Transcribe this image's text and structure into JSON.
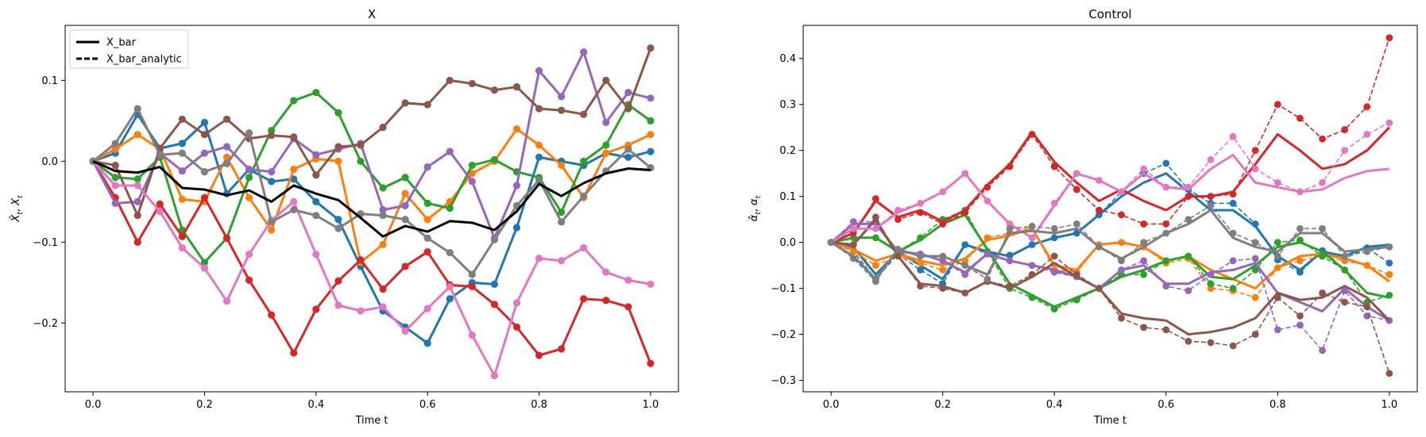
{
  "colors": {
    "blue": "#1f77b4",
    "orange": "#ff7f0e",
    "green": "#2ca02c",
    "red": "#d62728",
    "purple": "#9467bd",
    "brown": "#8c564b",
    "pink": "#e377c2",
    "gray": "#7f7f7f",
    "black": "#000000"
  },
  "chart_data": [
    {
      "type": "line",
      "title": "X",
      "xlabel": "Time t",
      "ylabel": "X̂_t, X_t",
      "xlim": [
        -0.05,
        1.05
      ],
      "ylim": [
        -0.285,
        0.168
      ],
      "xticks": [
        0.0,
        0.2,
        0.4,
        0.6,
        0.8,
        1.0
      ],
      "xtick_labels": [
        "0.0",
        "0.2",
        "0.4",
        "0.6",
        "0.8",
        "1.0"
      ],
      "yticks": [
        -0.2,
        -0.1,
        0.0,
        0.1
      ],
      "ytick_labels": [
        "−0.2",
        "−0.1",
        "0.0",
        "0.1"
      ],
      "grid": false,
      "legend": {
        "placement": "top-left",
        "entries": [
          {
            "label": "X_bar",
            "style": "solid"
          },
          {
            "label": "X_bar_analytic",
            "style": "dashed"
          }
        ]
      },
      "x": [
        0,
        0.04,
        0.08,
        0.12,
        0.16,
        0.2,
        0.24,
        0.28,
        0.32,
        0.36,
        0.4,
        0.44,
        0.48,
        0.52,
        0.56,
        0.6,
        0.64,
        0.68,
        0.72,
        0.76,
        0.8,
        0.84,
        0.88,
        0.92,
        0.96,
        1.0
      ],
      "series": [
        {
          "color": "blue",
          "values": [
            0,
            0.01,
            0.058,
            0.016,
            0.022,
            0.048,
            -0.04,
            -0.01,
            -0.025,
            -0.022,
            -0.05,
            -0.072,
            -0.13,
            -0.185,
            -0.205,
            -0.225,
            -0.17,
            -0.15,
            -0.152,
            -0.082,
            0.005,
            0.0,
            -0.005,
            0.01,
            0.005,
            0.012
          ]
        },
        {
          "color": "orange",
          "values": [
            0,
            0.015,
            0.033,
            0.015,
            -0.047,
            -0.05,
            0.005,
            -0.045,
            -0.085,
            -0.01,
            0.003,
            0.0,
            -0.125,
            -0.103,
            -0.04,
            -0.072,
            -0.05,
            -0.015,
            0.0,
            0.04,
            0.02,
            -0.005,
            -0.045,
            0.01,
            0.02,
            0.033
          ]
        },
        {
          "color": "green",
          "values": [
            0,
            -0.02,
            -0.022,
            0.005,
            -0.085,
            -0.125,
            -0.095,
            -0.02,
            0.038,
            0.075,
            0.085,
            0.06,
            -0.0,
            -0.033,
            -0.02,
            -0.052,
            -0.058,
            -0.005,
            0.002,
            -0.013,
            -0.02,
            -0.063,
            0.0,
            0.02,
            0.07,
            0.05
          ]
        },
        {
          "color": "red",
          "values": [
            0,
            -0.045,
            -0.1,
            -0.053,
            -0.093,
            -0.045,
            -0.095,
            -0.147,
            -0.19,
            -0.237,
            -0.183,
            -0.148,
            -0.122,
            -0.158,
            -0.13,
            -0.112,
            -0.153,
            -0.155,
            -0.177,
            -0.205,
            -0.24,
            -0.232,
            -0.17,
            -0.172,
            -0.18,
            -0.25
          ]
        },
        {
          "color": "purple",
          "values": [
            0,
            -0.052,
            -0.05,
            0.01,
            -0.012,
            0.01,
            0.018,
            -0.01,
            -0.013,
            0.028,
            0.008,
            0.015,
            0.022,
            -0.06,
            -0.055,
            -0.007,
            0.012,
            -0.025,
            -0.095,
            -0.03,
            0.112,
            0.08,
            0.135,
            0.048,
            0.085,
            0.078
          ]
        },
        {
          "color": "brown",
          "values": [
            0,
            -0.005,
            -0.067,
            0.016,
            0.052,
            0.033,
            0.052,
            0.028,
            0.032,
            0.03,
            -0.017,
            0.018,
            0.02,
            0.042,
            0.072,
            0.07,
            0.1,
            0.096,
            0.088,
            0.092,
            0.065,
            0.063,
            0.058,
            0.1,
            0.065,
            0.14
          ]
        },
        {
          "color": "pink",
          "values": [
            0,
            -0.03,
            -0.03,
            -0.062,
            -0.107,
            -0.132,
            -0.173,
            -0.115,
            -0.073,
            -0.05,
            -0.115,
            -0.178,
            -0.185,
            -0.18,
            -0.21,
            -0.182,
            -0.155,
            -0.215,
            -0.265,
            -0.175,
            -0.12,
            -0.123,
            -0.107,
            -0.137,
            -0.147,
            -0.152
          ]
        },
        {
          "color": "gray",
          "values": [
            0,
            0.022,
            0.065,
            0.008,
            0.01,
            -0.013,
            -0.003,
            0.035,
            -0.075,
            -0.06,
            -0.067,
            -0.083,
            -0.065,
            -0.067,
            -0.072,
            -0.095,
            -0.113,
            -0.14,
            -0.097,
            -0.055,
            -0.023,
            -0.075,
            -0.043,
            -0.012,
            0.015,
            -0.008
          ]
        },
        {
          "color": "black",
          "label": "X_bar",
          "mean": true,
          "values": [
            0,
            -0.012,
            -0.014,
            -0.007,
            -0.033,
            -0.035,
            -0.042,
            -0.036,
            -0.05,
            -0.03,
            -0.04,
            -0.048,
            -0.07,
            -0.093,
            -0.08,
            -0.087,
            -0.074,
            -0.076,
            -0.085,
            -0.062,
            -0.028,
            -0.043,
            -0.027,
            -0.015,
            -0.009,
            -0.011
          ]
        }
      ]
    },
    {
      "type": "line",
      "title": "Control",
      "xlabel": "Time t",
      "ylabel": "α̂_t, α_t",
      "xlim": [
        -0.05,
        1.05
      ],
      "ylim": [
        -0.325,
        0.472
      ],
      "xticks": [
        0.0,
        0.2,
        0.4,
        0.6,
        0.8,
        1.0
      ],
      "xtick_labels": [
        "0.0",
        "0.2",
        "0.4",
        "0.6",
        "0.8",
        "1.0"
      ],
      "yticks": [
        -0.3,
        -0.2,
        -0.1,
        0.0,
        0.1,
        0.2,
        0.3,
        0.4
      ],
      "ytick_labels": [
        "−0.3",
        "−0.2",
        "−0.1",
        "0.0",
        "0.1",
        "0.2",
        "0.3",
        "0.4"
      ],
      "grid": false,
      "x": [
        0,
        0.04,
        0.08,
        0.12,
        0.16,
        0.2,
        0.24,
        0.28,
        0.32,
        0.36,
        0.4,
        0.44,
        0.48,
        0.52,
        0.56,
        0.6,
        0.64,
        0.68,
        0.72,
        0.76,
        0.8,
        0.84,
        0.88,
        0.92,
        0.96,
        1.0
      ],
      "series": [
        {
          "color": "blue",
          "dashed": [
            0,
            -0.02,
            -0.08,
            -0.025,
            -0.06,
            -0.09,
            -0.005,
            -0.025,
            -0.028,
            -0.005,
            0.01,
            0.02,
            0.06,
            0.11,
            0.15,
            0.172,
            0.115,
            0.085,
            0.085,
            0.04,
            -0.038,
            -0.065,
            -0.018,
            -0.035,
            -0.012,
            -0.045
          ],
          "solid": [
            0,
            -0.01,
            -0.07,
            -0.02,
            -0.05,
            -0.08,
            -0.005,
            -0.02,
            -0.03,
            -0.005,
            0.01,
            0.02,
            0.06,
            0.1,
            0.13,
            0.15,
            0.11,
            0.07,
            0.07,
            0.035,
            -0.03,
            -0.06,
            -0.02,
            -0.03,
            -0.01,
            -0.005
          ]
        },
        {
          "color": "orange",
          "dashed": [
            0,
            -0.02,
            -0.05,
            -0.03,
            -0.045,
            -0.06,
            -0.04,
            0.01,
            0.02,
            0.035,
            -0.06,
            -0.065,
            -0.005,
            0.0,
            -0.01,
            -0.045,
            -0.035,
            -0.1,
            -0.105,
            -0.12,
            -0.055,
            -0.04,
            -0.03,
            -0.04,
            -0.05,
            -0.07
          ],
          "solid": [
            0,
            -0.015,
            -0.04,
            -0.025,
            -0.04,
            -0.05,
            -0.035,
            0.005,
            0.015,
            0.03,
            -0.05,
            -0.06,
            -0.005,
            0.0,
            -0.01,
            -0.04,
            -0.03,
            -0.06,
            -0.08,
            -0.1,
            -0.055,
            -0.03,
            -0.025,
            -0.035,
            -0.05,
            -0.085
          ]
        },
        {
          "color": "green",
          "dashed": [
            0,
            0.01,
            0.01,
            -0.02,
            0.01,
            0.05,
            0.07,
            -0.02,
            -0.1,
            -0.12,
            -0.145,
            -0.125,
            -0.1,
            -0.07,
            -0.07,
            -0.04,
            -0.03,
            -0.09,
            -0.1,
            -0.06,
            0.0,
            0.005,
            -0.03,
            -0.06,
            -0.13,
            -0.115
          ],
          "solid": [
            0,
            0.01,
            0.01,
            -0.02,
            0.005,
            0.04,
            0.06,
            -0.015,
            -0.09,
            -0.115,
            -0.14,
            -0.12,
            -0.1,
            -0.075,
            -0.06,
            -0.04,
            -0.03,
            -0.075,
            -0.08,
            -0.05,
            -0.01,
            0.0,
            -0.02,
            -0.06,
            -0.11,
            -0.12
          ]
        },
        {
          "color": "red",
          "dashed": [
            0,
            0.02,
            0.095,
            0.05,
            0.065,
            0.04,
            0.065,
            0.12,
            0.165,
            0.235,
            0.165,
            0.115,
            0.07,
            0.06,
            0.04,
            0.04,
            0.1,
            0.1,
            0.105,
            0.2,
            0.3,
            0.27,
            0.225,
            0.245,
            0.295,
            0.445
          ],
          "solid": [
            0,
            0.02,
            0.09,
            0.055,
            0.07,
            0.045,
            0.07,
            0.125,
            0.17,
            0.24,
            0.175,
            0.13,
            0.09,
            0.115,
            0.09,
            0.07,
            0.1,
            0.1,
            0.11,
            0.17,
            0.235,
            0.2,
            0.16,
            0.17,
            0.2,
            0.25
          ]
        },
        {
          "color": "purple",
          "dashed": [
            0,
            0.045,
            0.045,
            -0.02,
            -0.025,
            -0.04,
            -0.07,
            -0.025,
            -0.04,
            -0.05,
            -0.065,
            -0.075,
            -0.1,
            -0.06,
            -0.04,
            -0.095,
            -0.105,
            -0.07,
            -0.04,
            -0.035,
            -0.19,
            -0.18,
            -0.235,
            -0.105,
            -0.16,
            -0.17
          ],
          "solid": [
            0,
            0.04,
            0.04,
            -0.02,
            -0.025,
            -0.04,
            -0.065,
            -0.025,
            -0.04,
            -0.05,
            -0.06,
            -0.075,
            -0.1,
            -0.06,
            -0.05,
            -0.09,
            -0.09,
            -0.065,
            -0.06,
            -0.045,
            -0.11,
            -0.13,
            -0.15,
            -0.1,
            -0.14,
            -0.17
          ]
        },
        {
          "color": "brown",
          "dashed": [
            0,
            -0.005,
            0.055,
            -0.03,
            -0.095,
            -0.1,
            -0.11,
            -0.085,
            -0.095,
            -0.07,
            -0.03,
            -0.07,
            -0.1,
            -0.165,
            -0.185,
            -0.19,
            -0.215,
            -0.218,
            -0.225,
            -0.2,
            -0.12,
            -0.16,
            -0.11,
            -0.13,
            -0.14,
            -0.285
          ],
          "solid": [
            0,
            -0.005,
            0.05,
            -0.03,
            -0.09,
            -0.095,
            -0.11,
            -0.085,
            -0.1,
            -0.075,
            -0.045,
            -0.075,
            -0.1,
            -0.155,
            -0.165,
            -0.17,
            -0.2,
            -0.195,
            -0.185,
            -0.165,
            -0.11,
            -0.125,
            -0.12,
            -0.095,
            -0.12,
            -0.17
          ]
        },
        {
          "color": "pink",
          "dashed": [
            0,
            0.03,
            0.03,
            0.07,
            0.085,
            0.11,
            0.15,
            0.09,
            0.04,
            0.01,
            0.085,
            0.15,
            0.135,
            0.11,
            0.16,
            0.12,
            0.12,
            0.18,
            0.23,
            0.16,
            0.13,
            0.11,
            0.13,
            0.2,
            0.235,
            0.26
          ],
          "solid": [
            0,
            0.03,
            0.03,
            0.065,
            0.085,
            0.11,
            0.15,
            0.09,
            0.04,
            0.01,
            0.08,
            0.15,
            0.135,
            0.11,
            0.15,
            0.12,
            0.115,
            0.16,
            0.19,
            0.13,
            0.12,
            0.11,
            0.115,
            0.14,
            0.155,
            0.16
          ]
        },
        {
          "color": "gray",
          "dashed": [
            0,
            -0.035,
            -0.085,
            -0.015,
            -0.03,
            -0.03,
            -0.05,
            -0.08,
            0.03,
            0.035,
            0.03,
            0.04,
            -0.01,
            -0.04,
            0.0,
            0.02,
            0.05,
            0.08,
            0.02,
            0.0,
            -0.03,
            0.03,
            0.03,
            -0.03,
            -0.02,
            -0.01
          ],
          "solid": [
            0,
            -0.03,
            -0.08,
            -0.015,
            -0.03,
            -0.03,
            -0.05,
            -0.07,
            0.02,
            0.025,
            0.02,
            0.03,
            -0.01,
            -0.035,
            -0.01,
            0.02,
            0.04,
            0.07,
            0.01,
            -0.01,
            -0.02,
            0.02,
            0.02,
            -0.02,
            -0.015,
            -0.01
          ]
        }
      ]
    }
  ]
}
